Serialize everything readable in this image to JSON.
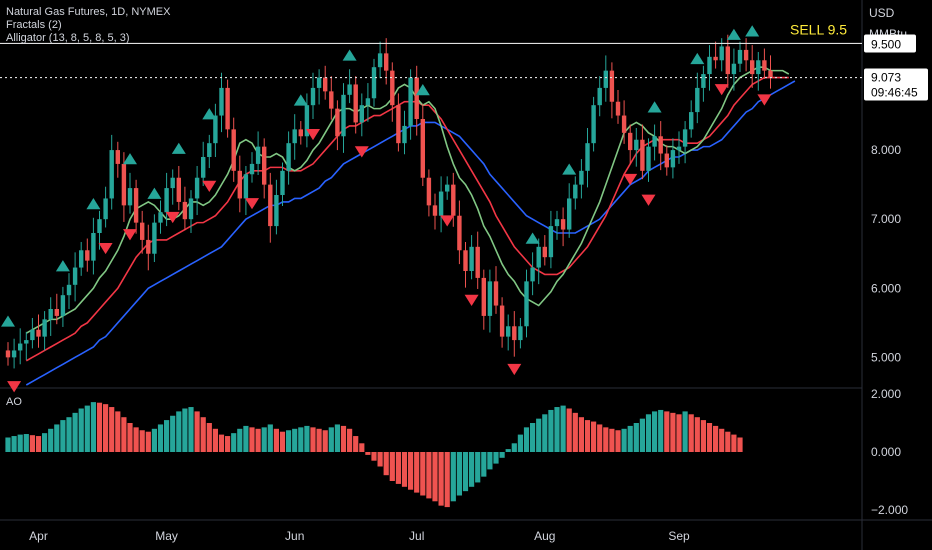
{
  "legend": {
    "symbol": "Natural Gas Futures, 1D, NYMEX",
    "fractals": "Fractals (2)",
    "alligator": "Alligator (13, 8, 5, 8, 5, 3)",
    "ao": "AO"
  },
  "axis": {
    "currency": "USD",
    "unit": "MMBtu",
    "price_ticks": [
      "8.000",
      "7.000",
      "6.000",
      "5.000"
    ],
    "ao_ticks": [
      "2.000",
      "0.000",
      "−2.000"
    ],
    "months": [
      "Apr",
      "May",
      "Jun",
      "Jul",
      "Aug",
      "Sep"
    ]
  },
  "annotation": {
    "text": "SELL 9.5",
    "color": "#ffeb3b",
    "level": 9.5
  },
  "badges": {
    "line": "9.500",
    "price": "9.073",
    "countdown": "09:46:45"
  },
  "colors": {
    "up": "#26a69a",
    "down": "#ef5350",
    "jaw": "#2962ff",
    "teeth": "#f23645",
    "lips": "#81c784",
    "fractal_up": "#26a69a",
    "fractal_down": "#f23645"
  },
  "chart_data": [
    {
      "type": "candlestick",
      "title": "Natural Gas Futures, 1D, NYMEX",
      "ylabel": "USD MMBtu",
      "ylim": [
        4.5,
        10.2
      ],
      "closes": [
        5.0,
        5.1,
        5.2,
        5.25,
        5.4,
        5.3,
        5.55,
        5.7,
        5.6,
        5.9,
        6.05,
        6.3,
        6.55,
        6.4,
        6.8,
        7.0,
        7.3,
        8.0,
        7.8,
        7.2,
        7.45,
        6.95,
        6.7,
        6.5,
        6.95,
        7.1,
        7.45,
        7.6,
        7.25,
        7.0,
        7.3,
        7.6,
        7.9,
        8.1,
        8.5,
        8.9,
        8.3,
        7.7,
        7.3,
        7.65,
        7.8,
        8.05,
        7.5,
        6.9,
        7.35,
        7.7,
        8.1,
        8.3,
        8.2,
        8.65,
        8.9,
        9.05,
        8.85,
        8.6,
        8.2,
        8.8,
        8.95,
        8.4,
        8.65,
        8.75,
        9.2,
        9.4,
        9.15,
        8.65,
        8.1,
        8.35,
        9.05,
        8.45,
        7.6,
        7.2,
        7.05,
        7.4,
        7.5,
        7.05,
        6.55,
        6.25,
        6.6,
        6.15,
        5.6,
        6.1,
        5.75,
        5.3,
        5.45,
        5.25,
        5.45,
        6.1,
        6.3,
        6.6,
        6.45,
        6.9,
        7.0,
        6.85,
        7.3,
        7.5,
        7.7,
        8.1,
        8.65,
        8.9,
        9.15,
        8.7,
        8.5,
        8.25,
        8.0,
        8.15,
        7.7,
        8.05,
        8.2,
        7.95,
        7.75,
        8.0,
        8.05,
        8.3,
        8.55,
        8.9,
        9.1,
        9.35,
        9.3,
        9.5,
        9.1,
        9.25,
        9.45,
        9.3,
        9.1,
        9.3,
        9.15,
        9.05
      ],
      "opens": [
        5.1,
        5.0,
        5.1,
        5.2,
        5.25,
        5.4,
        5.3,
        5.55,
        5.7,
        5.6,
        5.9,
        6.05,
        6.3,
        6.55,
        6.4,
        6.8,
        7.0,
        7.3,
        8.0,
        7.8,
        7.2,
        7.45,
        6.95,
        6.7,
        6.5,
        6.95,
        7.1,
        7.45,
        7.6,
        7.25,
        7.0,
        7.3,
        7.6,
        7.9,
        8.1,
        8.5,
        8.9,
        8.3,
        7.7,
        7.3,
        7.65,
        7.8,
        8.05,
        7.5,
        6.9,
        7.35,
        7.7,
        8.1,
        8.3,
        8.2,
        8.65,
        8.9,
        9.05,
        8.85,
        8.6,
        8.2,
        8.8,
        8.95,
        8.4,
        8.65,
        8.75,
        9.2,
        9.4,
        9.15,
        8.65,
        8.1,
        8.35,
        9.05,
        8.45,
        7.6,
        7.2,
        7.05,
        7.4,
        7.5,
        7.05,
        6.55,
        6.25,
        6.6,
        6.15,
        5.6,
        6.1,
        5.75,
        5.3,
        5.45,
        5.25,
        5.45,
        6.1,
        6.3,
        6.6,
        6.45,
        6.9,
        7.0,
        6.85,
        7.3,
        7.5,
        7.7,
        8.1,
        8.65,
        8.9,
        9.15,
        8.7,
        8.5,
        8.25,
        8.0,
        8.15,
        7.7,
        8.05,
        8.2,
        7.95,
        7.75,
        8.0,
        8.05,
        8.3,
        8.55,
        8.9,
        9.1,
        9.35,
        9.3,
        9.5,
        9.1,
        9.25,
        9.45,
        9.3,
        9.1,
        9.3,
        9.15
      ],
      "lips": [
        5.35,
        5.4,
        5.45,
        5.5,
        5.55,
        5.55,
        5.6,
        5.65,
        5.7,
        5.8,
        5.9,
        6.0,
        6.15,
        6.25,
        6.4,
        6.55,
        6.75,
        7.0,
        7.15,
        7.2,
        7.25,
        7.2,
        7.1,
        7.0,
        7.0,
        7.05,
        7.15,
        7.25,
        7.25,
        7.2,
        7.25,
        7.35,
        7.5,
        7.65,
        7.85,
        8.1,
        8.15,
        8.1,
        7.95,
        7.9,
        7.9,
        7.95,
        7.9,
        7.75,
        7.7,
        7.75,
        7.85,
        8.0,
        8.1,
        8.25,
        8.4,
        8.55,
        8.6,
        8.6,
        8.55,
        8.6,
        8.65,
        8.6,
        8.6,
        8.65,
        8.75,
        8.9,
        8.95,
        8.9,
        8.75,
        8.65,
        8.7,
        8.6,
        8.35,
        8.05,
        7.8,
        7.6,
        7.5,
        7.35,
        7.15,
        6.9,
        6.75,
        6.55,
        6.35,
        6.2,
        6.1,
        5.95,
        5.85,
        5.8,
        5.75,
        5.85,
        5.95,
        6.1,
        6.2,
        6.35,
        6.5,
        6.65,
        6.85,
        7.05,
        7.25,
        7.5,
        7.75,
        8.0,
        8.25,
        8.35,
        8.4,
        8.35,
        8.25,
        8.2,
        8.1,
        8.05,
        8.05,
        8.0,
        7.95,
        8.0,
        8.05,
        8.15,
        8.3,
        8.45,
        8.6,
        8.8,
        8.95,
        9.05,
        9.1,
        9.15,
        9.2,
        9.2,
        9.15,
        9.15,
        9.15,
        9.1
      ],
      "teeth": [
        4.95,
        5.0,
        5.05,
        5.1,
        5.15,
        5.2,
        5.25,
        5.3,
        5.35,
        5.45,
        5.5,
        5.6,
        5.7,
        5.8,
        5.9,
        6.0,
        6.15,
        6.3,
        6.45,
        6.55,
        6.65,
        6.7,
        6.7,
        6.7,
        6.75,
        6.8,
        6.85,
        6.9,
        6.95,
        6.95,
        7.0,
        7.05,
        7.15,
        7.25,
        7.4,
        7.55,
        7.65,
        7.7,
        7.7,
        7.7,
        7.75,
        7.75,
        7.75,
        7.7,
        7.7,
        7.7,
        7.75,
        7.8,
        7.9,
        8.0,
        8.1,
        8.2,
        8.3,
        8.35,
        8.35,
        8.4,
        8.45,
        8.5,
        8.5,
        8.55,
        8.6,
        8.65,
        8.7,
        8.7,
        8.7,
        8.65,
        8.65,
        8.55,
        8.45,
        8.3,
        8.15,
        8.0,
        7.85,
        7.7,
        7.55,
        7.4,
        7.25,
        7.05,
        6.9,
        6.75,
        6.6,
        6.5,
        6.4,
        6.3,
        6.25,
        6.2,
        6.2,
        6.2,
        6.25,
        6.3,
        6.4,
        6.5,
        6.6,
        6.75,
        6.9,
        7.05,
        7.25,
        7.45,
        7.65,
        7.8,
        7.95,
        8.05,
        8.1,
        8.15,
        8.15,
        8.15,
        8.15,
        8.15,
        8.1,
        8.1,
        8.1,
        8.15,
        8.2,
        8.3,
        8.4,
        8.5,
        8.65,
        8.75,
        8.85,
        8.95,
        9.0,
        9.05,
        9.05,
        9.05,
        9.05,
        9.05
      ],
      "jaw": [
        4.6,
        4.65,
        4.7,
        4.75,
        4.8,
        4.85,
        4.9,
        4.95,
        5.0,
        5.05,
        5.1,
        5.15,
        5.25,
        5.3,
        5.4,
        5.5,
        5.6,
        5.7,
        5.8,
        5.9,
        6.0,
        6.05,
        6.1,
        6.15,
        6.2,
        6.25,
        6.3,
        6.35,
        6.4,
        6.45,
        6.5,
        6.55,
        6.6,
        6.7,
        6.8,
        6.9,
        7.0,
        7.05,
        7.1,
        7.15,
        7.2,
        7.2,
        7.25,
        7.25,
        7.3,
        7.3,
        7.35,
        7.4,
        7.45,
        7.55,
        7.6,
        7.7,
        7.8,
        7.85,
        7.9,
        7.95,
        8.0,
        8.05,
        8.1,
        8.15,
        8.2,
        8.25,
        8.3,
        8.35,
        8.35,
        8.4,
        8.4,
        8.4,
        8.35,
        8.3,
        8.25,
        8.2,
        8.1,
        8.0,
        7.9,
        7.8,
        7.65,
        7.55,
        7.45,
        7.35,
        7.25,
        7.15,
        7.05,
        7.0,
        6.95,
        6.9,
        6.85,
        6.8,
        6.8,
        6.8,
        6.8,
        6.85,
        6.9,
        6.95,
        7.0,
        7.1,
        7.2,
        7.3,
        7.4,
        7.5,
        7.55,
        7.6,
        7.7,
        7.75,
        7.8,
        7.85,
        7.9,
        7.9,
        7.95,
        8.0,
        8.0,
        8.05,
        8.05,
        8.1,
        8.15,
        8.25,
        8.35,
        8.45,
        8.55,
        8.6,
        8.7,
        8.75,
        8.8,
        8.85,
        8.9,
        8.95,
        9.0
      ]
    },
    {
      "type": "bar",
      "title": "AO",
      "ylim": [
        -2,
        2
      ],
      "values": [
        0.5,
        0.55,
        0.6,
        0.62,
        0.58,
        0.55,
        0.65,
        0.8,
        0.95,
        1.1,
        1.2,
        1.35,
        1.5,
        1.6,
        1.72,
        1.7,
        1.65,
        1.55,
        1.4,
        1.2,
        1.0,
        0.85,
        0.75,
        0.7,
        0.8,
        0.95,
        1.1,
        1.25,
        1.4,
        1.5,
        1.55,
        1.4,
        1.2,
        1.0,
        0.8,
        0.6,
        0.55,
        0.65,
        0.8,
        0.9,
        0.85,
        0.8,
        0.85,
        0.95,
        0.8,
        0.7,
        0.75,
        0.8,
        0.85,
        0.9,
        0.85,
        0.8,
        0.75,
        0.85,
        0.95,
        0.9,
        0.8,
        0.55,
        0.3,
        -0.1,
        -0.3,
        -0.5,
        -0.8,
        -1.0,
        -1.1,
        -1.2,
        -1.3,
        -1.4,
        -1.5,
        -1.6,
        -1.7,
        -1.85,
        -1.9,
        -1.7,
        -1.5,
        -1.35,
        -1.2,
        -1.05,
        -0.85,
        -0.6,
        -0.4,
        -0.2,
        0.1,
        0.3,
        0.6,
        0.85,
        1.0,
        1.15,
        1.3,
        1.45,
        1.55,
        1.6,
        1.5,
        1.35,
        1.2,
        1.1,
        1.05,
        0.95,
        0.85,
        0.8,
        0.75,
        0.8,
        0.9,
        1.0,
        1.15,
        1.3,
        1.4,
        1.45,
        1.4,
        1.35,
        1.3,
        1.4,
        1.3,
        1.2,
        1.1,
        1.0,
        0.9,
        0.8,
        0.7,
        0.6,
        0.5
      ]
    }
  ],
  "fractals_up": [
    0,
    9,
    14,
    20,
    24,
    28,
    33,
    48,
    56,
    68,
    86,
    92,
    106,
    113,
    119,
    122,
    127
  ],
  "fractals_down": [
    1,
    16,
    20,
    27,
    33,
    40,
    50,
    58,
    72,
    76,
    83,
    102,
    105,
    117,
    124
  ],
  "months_idx": [
    5,
    26,
    47,
    67,
    88,
    110
  ]
}
